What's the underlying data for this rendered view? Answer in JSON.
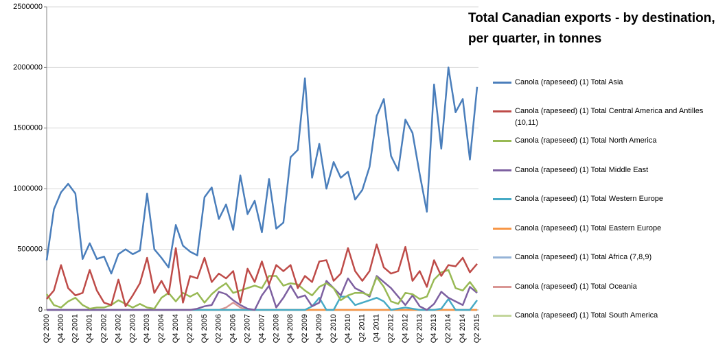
{
  "chart_data": {
    "type": "line",
    "title": "Total Canadian exports - by destination, per quarter, in tonnes",
    "categories": [
      "Q2 2000",
      null,
      "Q4 2000",
      null,
      "Q2 2001",
      null,
      "Q4 2001",
      null,
      "Q2 2002",
      null,
      "Q4 2002",
      null,
      "Q2 2003",
      null,
      "Q4 2003",
      null,
      "Q2 2004",
      null,
      "Q4 2004",
      null,
      "Q2 2005",
      null,
      "Q4 2005",
      null,
      "Q2 2006",
      null,
      "Q4 2006",
      null,
      "Q2 2007",
      null,
      "Q4 2007",
      null,
      "Q2 2008",
      null,
      "Q4 2008",
      null,
      "Q2 2009",
      null,
      "Q4 2009",
      null,
      "Q2 2010",
      null,
      "Q4 2010",
      null,
      "Q2 2011",
      null,
      "Q4 2011",
      null,
      "Q2 2012",
      null,
      "Q4 2012",
      null,
      "Q2 2013",
      null,
      "Q4 2013",
      null,
      "Q2 2014",
      null,
      "Q4 2014",
      null,
      "Q2 2015"
    ],
    "ylim": [
      0,
      2500000
    ],
    "yticks": [
      0,
      500000,
      1000000,
      1500000,
      2000000,
      2500000
    ],
    "grid": true,
    "legend": "right",
    "series": [
      {
        "name": "Canola (rapeseed) (1) Total Asia",
        "color": "#4a7ebb",
        "values": [
          410000,
          830000,
          970000,
          1040000,
          960000,
          420000,
          550000,
          420000,
          440000,
          300000,
          460000,
          500000,
          460000,
          490000,
          960000,
          500000,
          430000,
          350000,
          700000,
          530000,
          480000,
          450000,
          930000,
          1010000,
          750000,
          870000,
          660000,
          1110000,
          790000,
          900000,
          640000,
          1080000,
          670000,
          720000,
          1260000,
          1320000,
          1910000,
          1090000,
          1370000,
          1000000,
          1220000,
          1090000,
          1140000,
          910000,
          990000,
          1180000,
          1600000,
          1740000,
          1270000,
          1150000,
          1570000,
          1460000,
          1120000,
          810000,
          1860000,
          1330000,
          2000000,
          1630000,
          1740000,
          1240000,
          1840000
        ]
      },
      {
        "name": "Canola (rapeseed) (1) Total Central America and Antilles (10,11)",
        "color": "#be4b48",
        "values": [
          90000,
          160000,
          370000,
          180000,
          120000,
          140000,
          330000,
          160000,
          60000,
          40000,
          250000,
          30000,
          120000,
          220000,
          430000,
          140000,
          240000,
          130000,
          510000,
          60000,
          280000,
          260000,
          430000,
          230000,
          300000,
          260000,
          320000,
          60000,
          340000,
          230000,
          400000,
          210000,
          370000,
          320000,
          370000,
          180000,
          280000,
          230000,
          400000,
          410000,
          240000,
          300000,
          510000,
          320000,
          240000,
          320000,
          540000,
          350000,
          300000,
          320000,
          520000,
          240000,
          320000,
          190000,
          410000,
          280000,
          370000,
          360000,
          430000,
          310000,
          380000
        ]
      },
      {
        "name": "Canola (rapeseed) (1) Total North America",
        "color": "#98b954",
        "values": [
          130000,
          40000,
          20000,
          70000,
          100000,
          40000,
          10000,
          20000,
          20000,
          40000,
          80000,
          50000,
          20000,
          50000,
          20000,
          10000,
          100000,
          140000,
          70000,
          140000,
          110000,
          140000,
          60000,
          130000,
          180000,
          220000,
          140000,
          160000,
          180000,
          200000,
          180000,
          280000,
          280000,
          200000,
          220000,
          210000,
          160000,
          120000,
          190000,
          220000,
          180000,
          80000,
          120000,
          140000,
          140000,
          120000,
          270000,
          190000,
          70000,
          50000,
          140000,
          130000,
          90000,
          110000,
          250000,
          310000,
          330000,
          180000,
          160000,
          230000,
          150000
        ]
      },
      {
        "name": "Canola (rapeseed) (1) Total Middle East",
        "color": "#7d60a0",
        "values": [
          0,
          0,
          0,
          0,
          0,
          0,
          0,
          0,
          0,
          0,
          0,
          0,
          0,
          0,
          0,
          0,
          0,
          0,
          0,
          0,
          0,
          10000,
          30000,
          40000,
          150000,
          130000,
          80000,
          40000,
          10000,
          0,
          120000,
          200000,
          20000,
          100000,
          200000,
          100000,
          120000,
          30000,
          60000,
          240000,
          180000,
          120000,
          260000,
          180000,
          150000,
          110000,
          280000,
          230000,
          180000,
          110000,
          40000,
          120000,
          30000,
          0,
          50000,
          150000,
          100000,
          70000,
          40000,
          190000,
          140000
        ]
      },
      {
        "name": "Canola (rapeseed) (1) Total Western Europe",
        "color": "#46aac5",
        "values": [
          0,
          0,
          0,
          0,
          0,
          0,
          0,
          0,
          0,
          0,
          0,
          0,
          0,
          0,
          0,
          0,
          0,
          0,
          0,
          0,
          0,
          0,
          0,
          0,
          0,
          0,
          0,
          0,
          0,
          0,
          0,
          0,
          0,
          0,
          0,
          0,
          0,
          30000,
          100000,
          0,
          0,
          110000,
          110000,
          40000,
          60000,
          80000,
          100000,
          70000,
          0,
          10000,
          20000,
          10000,
          0,
          0,
          0,
          10000,
          90000,
          0,
          0,
          0,
          80000
        ]
      },
      {
        "name": "Canola (rapeseed) (1) Total Eastern Europe",
        "color": "#f79646",
        "values": [
          0,
          0,
          0,
          0,
          0,
          0,
          0,
          0,
          0,
          0,
          0,
          0,
          0,
          0,
          0,
          0,
          0,
          0,
          0,
          0,
          0,
          0,
          0,
          0,
          0,
          0,
          0,
          0,
          0,
          0,
          0,
          0,
          0,
          0,
          0,
          0,
          0,
          0,
          0,
          0,
          0,
          0,
          0,
          0,
          0,
          0,
          0,
          0,
          0,
          0,
          0,
          0,
          0,
          0,
          0,
          0,
          0,
          0,
          0,
          0,
          0
        ]
      },
      {
        "name": "Canola (rapeseed) (1) Total Africa (7,8,9)",
        "color": "#95b3d7",
        "values": [
          0,
          0,
          0,
          0,
          0,
          0,
          0,
          0,
          0,
          0,
          0,
          0,
          0,
          0,
          0,
          0,
          0,
          0,
          0,
          0,
          0,
          0,
          0,
          0,
          0,
          0,
          0,
          0,
          0,
          0,
          0,
          0,
          0,
          0,
          0,
          0,
          0,
          0,
          0,
          0,
          0,
          0,
          0,
          0,
          0,
          0,
          0,
          0,
          0,
          0,
          0,
          0,
          0,
          0,
          0,
          0,
          0,
          0,
          0,
          0,
          0
        ]
      },
      {
        "name": "Canola (rapeseed) (1) Total Oceania",
        "color": "#d99694",
        "values": [
          0,
          0,
          0,
          0,
          0,
          0,
          0,
          0,
          0,
          0,
          0,
          0,
          0,
          0,
          0,
          0,
          0,
          0,
          0,
          0,
          0,
          0,
          0,
          0,
          0,
          20000,
          60000,
          20000,
          0,
          0,
          0,
          0,
          0,
          0,
          0,
          0,
          0,
          0,
          0,
          0,
          0,
          0,
          0,
          0,
          0,
          0,
          0,
          0,
          0,
          0,
          0,
          0,
          0,
          0,
          0,
          0,
          0,
          0,
          0,
          0,
          0
        ]
      },
      {
        "name": "Canola (rapeseed) (1) Total South America",
        "color": "#c3d69b",
        "values": [
          0,
          0,
          0,
          0,
          0,
          0,
          0,
          0,
          0,
          0,
          0,
          0,
          0,
          0,
          0,
          0,
          0,
          0,
          0,
          0,
          0,
          0,
          0,
          0,
          0,
          0,
          0,
          0,
          0,
          0,
          0,
          0,
          0,
          0,
          0,
          0,
          0,
          0,
          0,
          0,
          0,
          0,
          0,
          0,
          0,
          0,
          0,
          0,
          0,
          0,
          0,
          0,
          0,
          0,
          0,
          0,
          0,
          0,
          0,
          0,
          0
        ]
      }
    ]
  }
}
